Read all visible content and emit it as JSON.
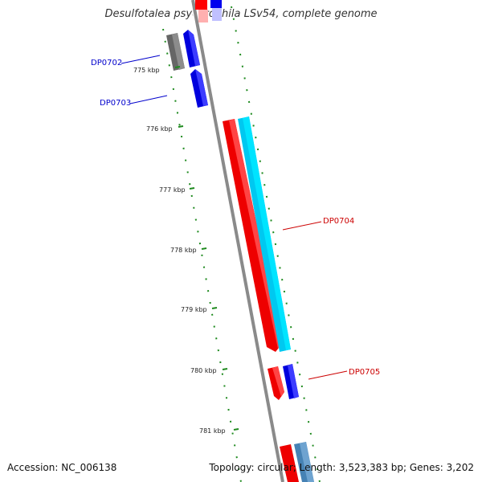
{
  "header": {
    "title": "Desulfotalea psychrophila LSv54, complete genome"
  },
  "footer": {
    "accession": "Accession: NC_006138",
    "summary": "Topology: circular; Length: 3,523,383 bp; Genes: 3,202"
  },
  "tick_labels": [
    "775 kbp",
    "776 kbp",
    "777 kbp",
    "778 kbp",
    "779 kbp",
    "780 kbp",
    "781 kbp"
  ],
  "genes": [
    {
      "label": "DP0702",
      "strand": "reverse",
      "color": "#0000cc"
    },
    {
      "label": "DP0703",
      "strand": "reverse",
      "color": "#0000cc"
    },
    {
      "label": "DP0704",
      "strand": "forward",
      "color": "#cc0000"
    },
    {
      "label": "DP0705",
      "strand": "forward",
      "color": "#cc0000"
    }
  ],
  "colors": {
    "backbone": "#888888",
    "forward_cds": "#ff0000",
    "reverse_cds": "#0000ee",
    "rna": "#00c8f0",
    "grey_feature": "#666666",
    "steel_feature": "#4682b4",
    "tick_marks": "#228b22"
  }
}
